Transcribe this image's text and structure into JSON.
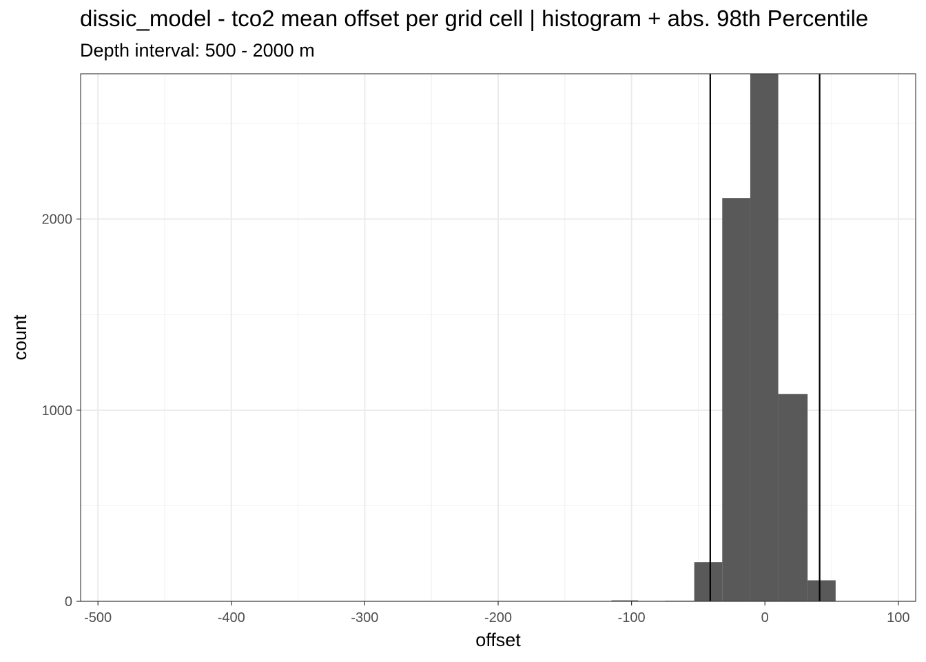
{
  "chart_data": {
    "type": "bar",
    "title": "dissic_model  -  tco2 mean offset per grid cell | histogram + abs. 98th Percentile",
    "subtitle": "Depth interval: 500 - 2000 m",
    "xlabel": "offset",
    "ylabel": "count",
    "xlim": [
      -513,
      113
    ],
    "ylim": [
      0,
      2760
    ],
    "x_ticks": [
      -500,
      -400,
      -300,
      -200,
      -100,
      0,
      100
    ],
    "y_ticks": [
      0,
      1000,
      2000
    ],
    "grid": true,
    "bar_color": "#595959",
    "bins": [
      {
        "x0": -115,
        "x1": -95,
        "count": 5
      },
      {
        "x0": -95,
        "x1": -75,
        "count": 2
      },
      {
        "x0": -75,
        "x1": -53,
        "count": 3
      },
      {
        "x0": -53,
        "x1": -32,
        "count": 205
      },
      {
        "x0": -32,
        "x1": -11,
        "count": 2110
      },
      {
        "x0": -11,
        "x1": 10,
        "count": 2760
      },
      {
        "x0": 10,
        "x1": 32,
        "count": 1085
      },
      {
        "x0": 32,
        "x1": 53,
        "count": 110
      }
    ],
    "percentile_lines": [
      -41,
      41
    ]
  }
}
